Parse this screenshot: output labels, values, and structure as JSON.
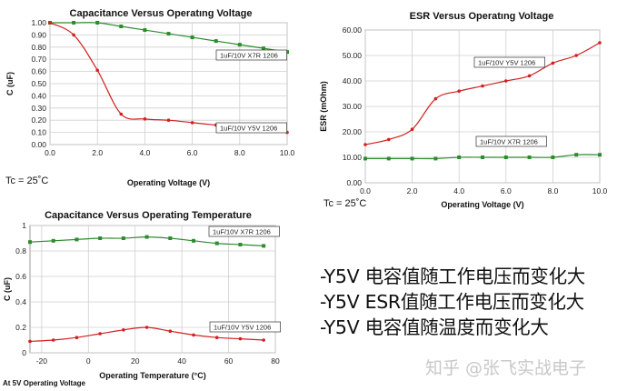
{
  "chart_data": [
    {
      "type": "line",
      "title": "Capacitance Versus Operatıng Voltage",
      "xlabel": "Operating Voltage (V)",
      "ylabel": "C (uF)",
      "xlim": [
        0,
        10
      ],
      "ylim": [
        0,
        1
      ],
      "xticks": [
        "0.0",
        "2.0",
        "4.0",
        "6.0",
        "8.0",
        "10.0"
      ],
      "yticks": [
        "0.00",
        "0.10",
        "0.20",
        "0.30",
        "0.40",
        "0.50",
        "0.60",
        "0.70",
        "0.80",
        "0.90",
        "1.00"
      ],
      "grid": true,
      "note": "Tc = 25˚C",
      "series": [
        {
          "name": "1uF/10V X7R 1206",
          "color": "#2e8b2e",
          "x": [
            0,
            1,
            2,
            3,
            4,
            5,
            6,
            7,
            8,
            9,
            10
          ],
          "y": [
            1.0,
            1.0,
            1.0,
            0.97,
            0.94,
            0.91,
            0.88,
            0.85,
            0.82,
            0.79,
            0.76
          ]
        },
        {
          "name": "1uF/10V Y5V 1206",
          "color": "#d12020",
          "x": [
            0,
            1,
            2,
            3,
            4,
            5,
            6,
            7,
            8,
            9,
            10
          ],
          "y": [
            1.0,
            0.9,
            0.61,
            0.25,
            0.21,
            0.2,
            0.18,
            0.16,
            0.14,
            0.12,
            0.1
          ]
        }
      ]
    },
    {
      "type": "line",
      "title": "ESR Versus Operatıng Voltage",
      "xlabel": "Operating Voltage (V)",
      "ylabel": "ESR (mOhm)",
      "xlim": [
        0,
        10
      ],
      "ylim": [
        0,
        60
      ],
      "xticks": [
        "0.0",
        "2.0",
        "4.0",
        "6.0",
        "8.0",
        "10.0"
      ],
      "yticks": [
        "0.00",
        "10.00",
        "20.00",
        "30.00",
        "40.00",
        "50.00",
        "60.00"
      ],
      "grid": true,
      "note": "Tc = 25˚C",
      "series": [
        {
          "name": "1uF/10V Y5V 1206",
          "color": "#d12020",
          "x": [
            0,
            1,
            2,
            3,
            4,
            5,
            6,
            7,
            8,
            9,
            10
          ],
          "y": [
            15,
            17,
            21,
            33,
            36,
            38,
            40,
            42,
            47,
            50,
            55
          ]
        },
        {
          "name": "1uF/10V X7R 1206",
          "color": "#2e8b2e",
          "x": [
            0,
            1,
            2,
            3,
            4,
            5,
            6,
            7,
            8,
            9,
            10
          ],
          "y": [
            9.5,
            9.5,
            9.5,
            9.5,
            10,
            10,
            10,
            10,
            10,
            11,
            11
          ]
        }
      ]
    },
    {
      "type": "line",
      "title": "Capacitance Versus Operating Temperature",
      "xlabel": "Operating Temperature (°C)",
      "ylabel": "C (uF)",
      "xlim": [
        -25,
        80
      ],
      "ylim": [
        0,
        1
      ],
      "xticks": [
        "-20",
        "0",
        "20",
        "40",
        "60",
        "80"
      ],
      "yticks": [
        "0",
        "0.2",
        "0.4",
        "0.6",
        "0.8",
        "1"
      ],
      "grid": true,
      "note": "At 5V Operating Voltage",
      "series": [
        {
          "name": "1uF/10V X7R 1206",
          "color": "#2e8b2e",
          "x": [
            -25,
            -15,
            -5,
            5,
            15,
            25,
            35,
            45,
            55,
            65,
            75
          ],
          "y": [
            0.87,
            0.88,
            0.89,
            0.9,
            0.9,
            0.91,
            0.9,
            0.88,
            0.86,
            0.85,
            0.84
          ]
        },
        {
          "name": "1uF/10V Y5V 1206",
          "color": "#d12020",
          "x": [
            -25,
            -15,
            -5,
            5,
            15,
            25,
            35,
            45,
            55,
            65,
            75
          ],
          "y": [
            0.09,
            0.1,
            0.12,
            0.15,
            0.18,
            0.2,
            0.17,
            0.14,
            0.12,
            0.11,
            0.1
          ]
        }
      ]
    }
  ],
  "notes": [
    "-Y5V 电容值随工作电压而变化大",
    "-Y5V ESR值随工作电压而变化大",
    "-Y5V 电容值随温度而变化大"
  ],
  "watermark": "知乎 @张飞实战电子"
}
